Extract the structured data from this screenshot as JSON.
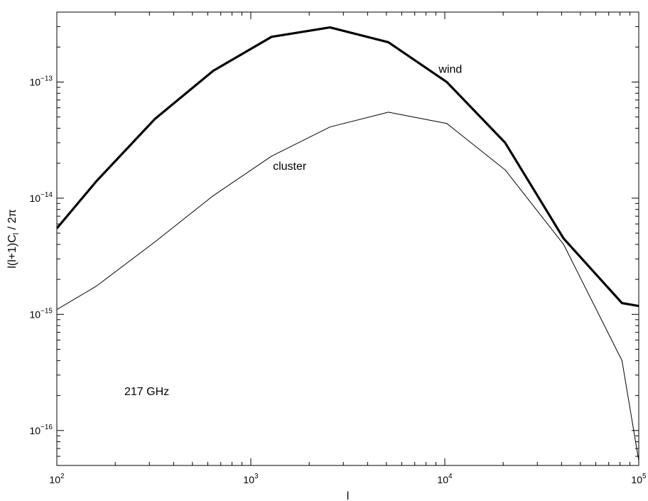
{
  "chart_data": {
    "type": "line",
    "xscale": "log",
    "yscale": "log",
    "xlim": [
      100,
      100000
    ],
    "ylim": [
      5e-17,
      4e-13
    ],
    "xlabel": "l",
    "ylabel": "l(l+1)C",
    "ylabel_sub": "l",
    "ylabel_tail": " / 2π",
    "annotation": "217 GHz",
    "x_ticks": [
      {
        "value": 100,
        "base": "10",
        "exp": "2"
      },
      {
        "value": 1000,
        "base": "10",
        "exp": "3"
      },
      {
        "value": 10000,
        "base": "10",
        "exp": "4"
      },
      {
        "value": 100000,
        "base": "10",
        "exp": "5"
      }
    ],
    "y_ticks": [
      {
        "value": 1e-16,
        "base": "10",
        "exp": "−16"
      },
      {
        "value": 1e-15,
        "base": "10",
        "exp": "−15"
      },
      {
        "value": 1e-14,
        "base": "10",
        "exp": "−14"
      },
      {
        "value": 1e-13,
        "base": "10",
        "exp": "−13"
      }
    ],
    "series": [
      {
        "name": "wind",
        "label_at": [
          9300,
          1.2e-13
        ],
        "width": 3.2,
        "color": "#000000",
        "x": [
          100,
          160,
          320,
          640,
          1280,
          2560,
          5120,
          10240,
          20480,
          40960,
          81920,
          100000
        ],
        "y": [
          5.5e-15,
          1.4e-14,
          4.8e-14,
          1.25e-13,
          2.45e-13,
          2.95e-13,
          2.2e-13,
          1e-13,
          3e-14,
          4.5e-15,
          1.25e-15,
          1.18e-15
        ]
      },
      {
        "name": "cluster",
        "label_at": [
          1300,
          1.75e-14
        ],
        "width": 1,
        "color": "#000000",
        "x": [
          100,
          160,
          320,
          640,
          1280,
          2560,
          5120,
          10240,
          20480,
          40960,
          81920,
          100000
        ],
        "y": [
          1.1e-15,
          1.75e-15,
          4.2e-15,
          1.05e-14,
          2.3e-14,
          4.1e-14,
          5.5e-14,
          4.4e-14,
          1.75e-14,
          4e-15,
          4e-16,
          5.5e-17
        ]
      }
    ]
  }
}
